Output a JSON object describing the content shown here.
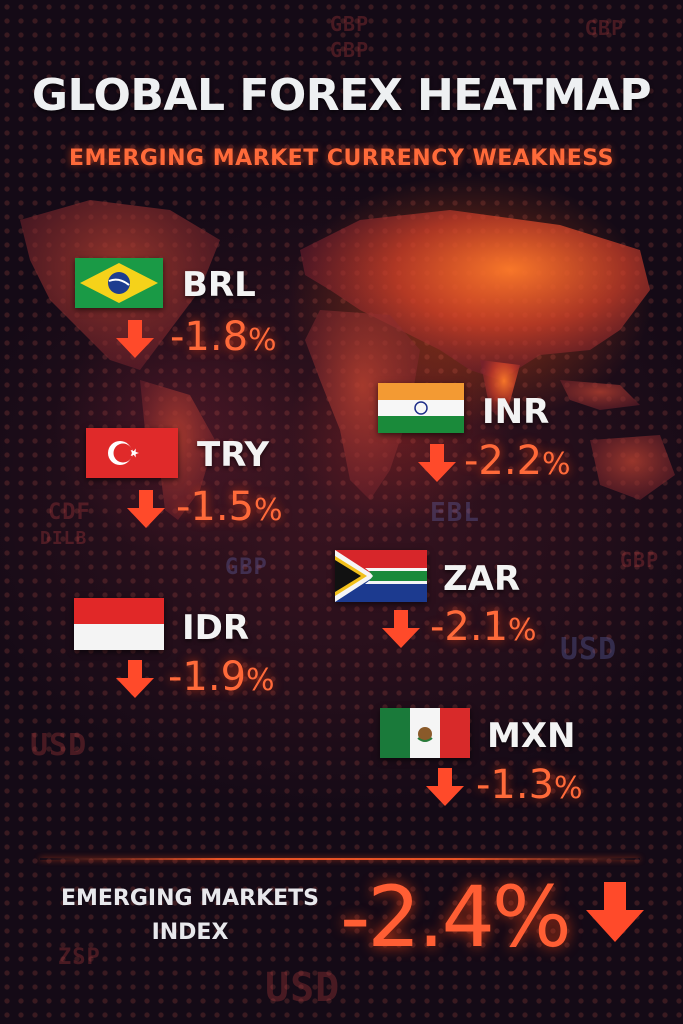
{
  "header": {
    "title": "GLOBAL FOREX HEATMAP",
    "subtitle": "EMERGING MARKET CURRENCY WEAKNESS"
  },
  "currencies": [
    {
      "code": "BRL",
      "change": "-1.8",
      "pct": "%",
      "flag": "brazil-flag",
      "direction": "down"
    },
    {
      "code": "TRY",
      "change": "-1.5",
      "pct": "%",
      "flag": "turkey-flag",
      "direction": "down"
    },
    {
      "code": "IDR",
      "change": "-1.9",
      "pct": "%",
      "flag": "indonesia-flag",
      "direction": "down"
    },
    {
      "code": "INR",
      "change": "-2.2",
      "pct": "%",
      "flag": "india-flag",
      "direction": "down"
    },
    {
      "code": "ZAR",
      "change": "-2.1",
      "pct": "%",
      "flag": "south-africa-flag",
      "direction": "down"
    },
    {
      "code": "MXN",
      "change": "-1.3",
      "pct": "%",
      "flag": "mexico-flag",
      "direction": "down"
    }
  ],
  "index": {
    "label_line1": "EMERGING MARKETS",
    "label_line2": "INDEX",
    "value": "-2.4%",
    "direction": "down"
  },
  "background_words": [
    "GBP",
    "CDF",
    "DILB",
    "GBP",
    "USD",
    "USD",
    "USD",
    "ZSP",
    "GBP",
    "EBL",
    "GBP",
    "GBP"
  ],
  "colors": {
    "accent": "#ff6a3a",
    "title": "#eef0f2",
    "background": "#140a16"
  }
}
